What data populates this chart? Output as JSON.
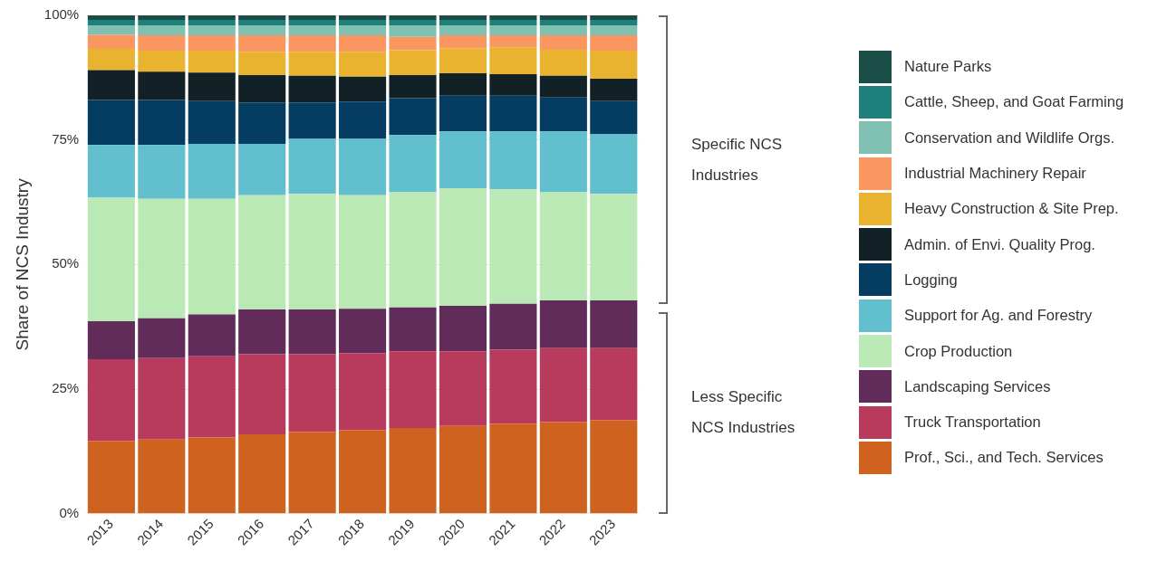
{
  "chart_data": {
    "type": "bar",
    "stacked": true,
    "ylabel": "Share of NCS Industry",
    "categories": [
      "2013",
      "2014",
      "2015",
      "2016",
      "2017",
      "2018",
      "2019",
      "2020",
      "2021",
      "2022",
      "2023"
    ],
    "series": [
      {
        "name": "Prof., Sci., and Tech. Services",
        "color": "#d0621f",
        "values": [
          14.6,
          14.9,
          15.3,
          15.9,
          16.4,
          16.8,
          17.2,
          17.6,
          18.0,
          18.4,
          18.8
        ]
      },
      {
        "name": "Truck Transportation",
        "color": "#b83b5e",
        "values": [
          16.4,
          16.3,
          16.3,
          16.1,
          15.6,
          15.4,
          15.4,
          15.0,
          14.9,
          14.8,
          14.4
        ]
      },
      {
        "name": "Landscaping Services",
        "color": "#612b5a",
        "values": [
          7.6,
          8.0,
          8.4,
          9.0,
          9.0,
          8.9,
          8.8,
          9.1,
          9.2,
          9.6,
          9.6
        ]
      },
      {
        "name": "Crop Production",
        "color": "#bbe9b6",
        "values": [
          24.8,
          24.0,
          23.2,
          22.9,
          23.2,
          22.8,
          23.1,
          23.6,
          23.0,
          21.7,
          21.4
        ]
      },
      {
        "name": "Support for Ag. and Forestry",
        "color": "#62bfcd",
        "values": [
          10.6,
          10.8,
          11.0,
          10.3,
          11.0,
          11.3,
          11.5,
          11.4,
          11.6,
          12.2,
          12.0
        ]
      },
      {
        "name": "Logging",
        "color": "#053c62",
        "values": [
          9.0,
          9.0,
          8.6,
          8.3,
          7.3,
          7.5,
          7.4,
          7.2,
          7.2,
          6.8,
          6.6
        ]
      },
      {
        "name": "Admin. of Envi. Quality Prog.",
        "color": "#122126",
        "values": [
          6.0,
          5.7,
          5.7,
          5.5,
          5.4,
          5.0,
          4.6,
          4.5,
          4.3,
          4.4,
          4.5
        ]
      },
      {
        "name": "Heavy Construction & Site Prep.",
        "color": "#e9b22f",
        "values": [
          4.3,
          4.2,
          4.4,
          4.7,
          4.8,
          5.0,
          5.0,
          5.0,
          5.4,
          5.2,
          5.6
        ]
      },
      {
        "name": "Industrial Machinery Repair",
        "color": "#fa9660",
        "values": [
          2.8,
          3.1,
          3.1,
          3.3,
          3.3,
          3.3,
          2.7,
          2.6,
          2.4,
          2.9,
          3.1
        ]
      },
      {
        "name": "Conservation and Wildlife Orgs.",
        "color": "#80c0b3",
        "values": [
          1.9,
          2.0,
          2.0,
          2.0,
          2.0,
          2.0,
          2.3,
          2.0,
          2.0,
          2.0,
          2.0
        ]
      },
      {
        "name": "Cattle, Sheep, and Goat Farming",
        "color": "#1f7f7c",
        "values": [
          1.1,
          1.1,
          1.1,
          1.1,
          1.1,
          1.1,
          1.1,
          1.1,
          1.1,
          1.1,
          1.1
        ]
      },
      {
        "name": "Nature Parks",
        "color": "#1b4d47",
        "values": [
          0.9,
          0.9,
          0.9,
          0.9,
          0.9,
          0.9,
          0.9,
          0.9,
          0.9,
          0.9,
          0.9
        ]
      }
    ],
    "ylim": [
      0,
      100
    ],
    "yticks": [
      {
        "value": 0,
        "label": "0%"
      },
      {
        "value": 25,
        "label": "25%"
      },
      {
        "value": 50,
        "label": "50%"
      },
      {
        "value": 75,
        "label": "75%"
      },
      {
        "value": 100,
        "label": "100%"
      }
    ],
    "grid": "y",
    "legend": "right",
    "annotations": [
      "Specific NCS Industries",
      "Less Specific NCS Industries"
    ]
  }
}
